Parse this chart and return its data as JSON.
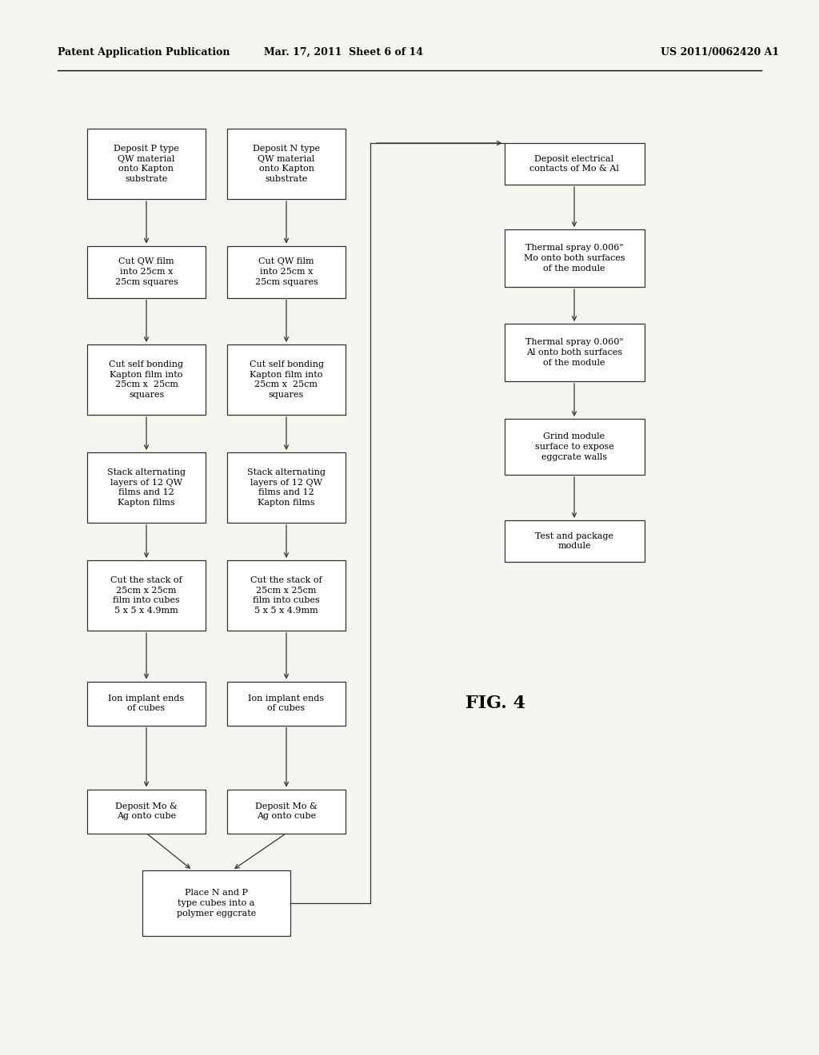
{
  "bg_color": "#f5f5f0",
  "header_left": "Patent Application Publication",
  "header_mid": "Mar. 17, 2011  Sheet 6 of 14",
  "header_right": "US 2011/0062420 A1",
  "fig_label": "FIG. 4",
  "left_boxes": [
    "Deposit P type\nQW material\nonto Kapton\nsubstrate",
    "Cut QW film\ninto 25cm x\n25cm squares",
    "Cut self bonding\nKapton film into\n25cm x  25cm\nsquares",
    "Stack alternating\nlayers of 12 QW\nfilms and 12\nKapton films",
    "Cut the stack of\n25cm x 25cm\nfilm into cubes\n5 x 5 x 4.9mm",
    "Ion implant ends\nof cubes",
    "Deposit Mo &\nAg onto cube"
  ],
  "mid_boxes": [
    "Deposit N type\nQW material\nonto Kapton\nsubstrate",
    "Cut QW film\ninto 25cm x\n25cm squares",
    "Cut self bonding\nKapton film into\n25cm x  25cm\nsquares",
    "Stack alternating\nlayers of 12 QW\nfilms and 12\nKapton films",
    "Cut the stack of\n25cm x 25cm\nfilm into cubes\n5 x 5 x 4.9mm",
    "Ion implant ends\nof cubes",
    "Deposit Mo &\nAg onto cube"
  ],
  "bottom_box": "Place N and P\ntype cubes into a\npolymer eggcrate",
  "right_boxes": [
    "Deposit electrical\ncontacts of Mo & Al",
    "Thermal spray 0.006\"\nMo onto both surfaces\nof the module",
    "Thermal spray 0.060\"\nAl onto both surfaces\nof the module",
    "Grind module\nsurface to expose\neggcrate walls",
    "Test and package\nmodule"
  ]
}
